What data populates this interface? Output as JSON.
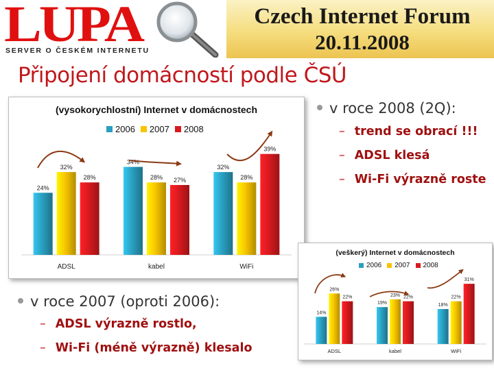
{
  "header": {
    "logo": "LUPA",
    "logo_subtitle": "SERVER O ČESKÉM INTERNETU",
    "forum_title": "Czech Internet Forum",
    "forum_date": "20.11.2008"
  },
  "slide_title": "Připojení domácností podle ČSÚ",
  "bullets": {
    "y2008": {
      "text": "v roce 2008 (2Q):",
      "items": [
        "trend se obrací !!!",
        "ADSL klesá",
        "Wi-Fi výrazně roste"
      ]
    },
    "y2007": {
      "text": "v roce 2007 (oproti 2006):",
      "items": [
        "ADSL  výrazně rostlo,",
        "Wi-Fi (méně výrazně) klesalo"
      ]
    }
  },
  "colors": {
    "s2006": "#2a9fc0",
    "s2007": "#f7c400",
    "s2008": "#d71a1f",
    "title_red": "#c0181c",
    "arrow": "#8b3a14"
  },
  "chart_data": [
    {
      "type": "bar",
      "title": "(vysokorychlostní) Internet v domácnostech",
      "categories": [
        "ADSL",
        "kabel",
        "WiFi"
      ],
      "series": [
        {
          "name": "2006",
          "values": [
            24,
            34,
            32
          ]
        },
        {
          "name": "2007",
          "values": [
            32,
            28,
            28
          ]
        },
        {
          "name": "2008",
          "values": [
            28,
            27,
            39
          ]
        }
      ],
      "value_labels": [
        [
          "24%",
          "32%",
          "28%"
        ],
        [
          "34%",
          "28%",
          "27%"
        ],
        [
          "32%",
          "28%",
          "39%"
        ]
      ],
      "ylim": [
        0,
        45
      ],
      "legend": "top",
      "grid": false
    },
    {
      "type": "bar",
      "title": "(veškerý) Internet v domácnostech",
      "categories": [
        "ADSL",
        "kabel",
        "WiFi"
      ],
      "series": [
        {
          "name": "2006",
          "values": [
            14,
            19,
            18
          ]
        },
        {
          "name": "2007",
          "values": [
            26,
            23,
            22
          ]
        },
        {
          "name": "2008",
          "values": [
            22,
            22,
            31
          ]
        }
      ],
      "value_labels": [
        [
          "14%",
          "26%",
          "22%"
        ],
        [
          "19%",
          "23%",
          "22%"
        ],
        [
          "18%",
          "22%",
          "31%"
        ]
      ],
      "ylim": [
        0,
        36
      ],
      "legend": "top",
      "grid": false
    }
  ]
}
